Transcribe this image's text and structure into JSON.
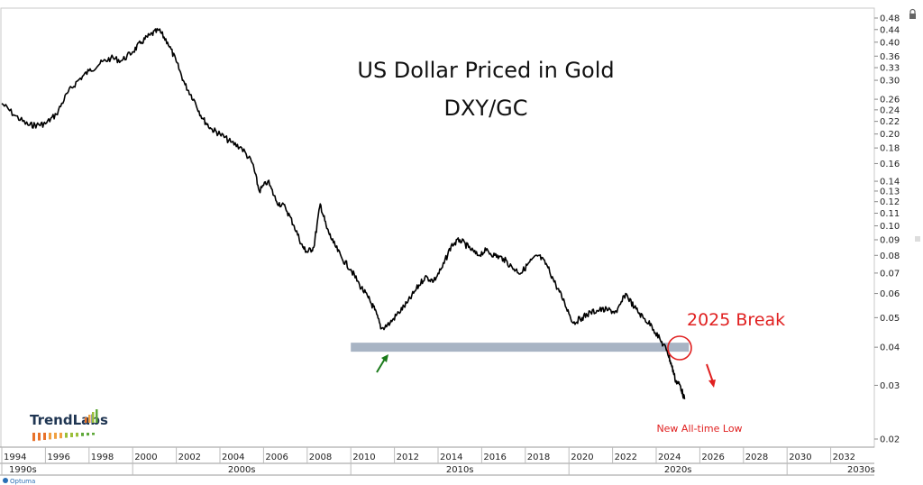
{
  "chart_data": {
    "type": "line",
    "title_line1": "US Dollar Priced in Gold",
    "title_line2": "DXY/GC",
    "y_scale": "log",
    "ylim": [
      0.02,
      0.5
    ],
    "xlim": [
      1994,
      2034
    ],
    "y_ticks": [
      {
        "v": 0.48,
        "label": "0.48"
      },
      {
        "v": 0.44,
        "label": "0.44"
      },
      {
        "v": 0.4,
        "label": "0.40"
      },
      {
        "v": 0.36,
        "label": "0.36"
      },
      {
        "v": 0.33,
        "label": "0.33"
      },
      {
        "v": 0.3,
        "label": "0.30"
      },
      {
        "v": 0.26,
        "label": "0.26"
      },
      {
        "v": 0.24,
        "label": "0.24"
      },
      {
        "v": 0.22,
        "label": "0.22"
      },
      {
        "v": 0.2,
        "label": "0.20"
      },
      {
        "v": 0.18,
        "label": "0.18"
      },
      {
        "v": 0.16,
        "label": "0.16"
      },
      {
        "v": 0.14,
        "label": "0.14"
      },
      {
        "v": 0.13,
        "label": "0.13"
      },
      {
        "v": 0.12,
        "label": "0.12"
      },
      {
        "v": 0.11,
        "label": "0.11"
      },
      {
        "v": 0.1,
        "label": "0.10"
      },
      {
        "v": 0.09,
        "label": "0.09"
      },
      {
        "v": 0.08,
        "label": "0.08"
      },
      {
        "v": 0.07,
        "label": "0.07"
      },
      {
        "v": 0.06,
        "label": "0.06"
      },
      {
        "v": 0.05,
        "label": "0.05"
      },
      {
        "v": 0.04,
        "label": "0.04"
      },
      {
        "v": 0.03,
        "label": "0.03"
      },
      {
        "v": 0.02,
        "label": "0.02"
      }
    ],
    "x_ticks": [
      {
        "v": 1994,
        "label": "1994"
      },
      {
        "v": 1996,
        "label": "1996"
      },
      {
        "v": 1998,
        "label": "1998"
      },
      {
        "v": 2000,
        "label": "2000"
      },
      {
        "v": 2002,
        "label": "2002"
      },
      {
        "v": 2004,
        "label": "2004"
      },
      {
        "v": 2006,
        "label": "2006"
      },
      {
        "v": 2008,
        "label": "2008"
      },
      {
        "v": 2010,
        "label": "2010"
      },
      {
        "v": 2012,
        "label": "2012"
      },
      {
        "v": 2014,
        "label": "2014"
      },
      {
        "v": 2016,
        "label": "2016"
      },
      {
        "v": 2018,
        "label": "2018"
      },
      {
        "v": 2020,
        "label": "2020"
      },
      {
        "v": 2022,
        "label": "2022"
      },
      {
        "v": 2024,
        "label": "2024"
      },
      {
        "v": 2026,
        "label": "2026"
      },
      {
        "v": 2028,
        "label": "2028"
      },
      {
        "v": 2030,
        "label": "2030"
      },
      {
        "v": 2032,
        "label": "2032"
      }
    ],
    "decades": [
      {
        "label": "1990s",
        "start": 1994,
        "end": 2000
      },
      {
        "label": "2000s",
        "start": 2000,
        "end": 2010
      },
      {
        "label": "2010s",
        "start": 2010,
        "end": 2020
      },
      {
        "label": "2020s",
        "start": 2020,
        "end": 2030
      },
      {
        "label": "2030s",
        "start": 2030,
        "end": 2034
      }
    ],
    "series": [
      {
        "color": "#000000",
        "x": [
          1994.0,
          1994.6,
          1995.2,
          1995.6,
          1996.0,
          1996.5,
          1997.0,
          1997.5,
          1998.0,
          1998.5,
          1999.0,
          1999.5,
          2000.0,
          2000.4,
          2000.8,
          2001.2,
          2001.6,
          2002.0,
          2002.4,
          2002.8,
          2003.2,
          2003.6,
          2004.0,
          2004.5,
          2005.0,
          2005.5,
          2005.8,
          2006.2,
          2006.6,
          2007.0,
          2007.4,
          2007.8,
          2008.0,
          2008.3,
          2008.6,
          2008.9,
          2009.2,
          2009.6,
          2010.0,
          2010.4,
          2010.8,
          2011.1,
          2011.4,
          2011.8,
          2012.2,
          2012.6,
          2013.0,
          2013.4,
          2013.8,
          2014.2,
          2014.6,
          2015.0,
          2015.4,
          2015.8,
          2016.2,
          2016.6,
          2017.0,
          2017.4,
          2017.8,
          2018.2,
          2018.6,
          2019.0,
          2019.4,
          2019.8,
          2020.2,
          2020.6,
          2021.0,
          2021.4,
          2021.8,
          2022.2,
          2022.6,
          2023.0,
          2023.4,
          2023.8,
          2024.2,
          2024.5,
          2024.7,
          2024.9,
          2025.1,
          2025.3
        ],
        "y": [
          0.252,
          0.23,
          0.214,
          0.214,
          0.216,
          0.232,
          0.272,
          0.3,
          0.322,
          0.34,
          0.355,
          0.348,
          0.372,
          0.4,
          0.422,
          0.438,
          0.4,
          0.345,
          0.29,
          0.26,
          0.225,
          0.208,
          0.2,
          0.188,
          0.18,
          0.16,
          0.13,
          0.14,
          0.12,
          0.115,
          0.1,
          0.085,
          0.082,
          0.085,
          0.118,
          0.098,
          0.088,
          0.078,
          0.072,
          0.064,
          0.058,
          0.053,
          0.046,
          0.048,
          0.052,
          0.056,
          0.062,
          0.068,
          0.066,
          0.073,
          0.086,
          0.09,
          0.085,
          0.08,
          0.083,
          0.08,
          0.078,
          0.073,
          0.07,
          0.076,
          0.08,
          0.074,
          0.064,
          0.056,
          0.048,
          0.05,
          0.052,
          0.053,
          0.053,
          0.052,
          0.06,
          0.054,
          0.05,
          0.047,
          0.042,
          0.039,
          0.035,
          0.031,
          0.03,
          0.027
        ]
      }
    ],
    "support_band": {
      "value": 0.04,
      "x_start": 2010.0,
      "x_end": 2025.5,
      "color": "#a8b4c4"
    },
    "annotations": {
      "break_text": "2025 Break",
      "low_text": "New All-time Low",
      "break_color": "#e02020",
      "up_arrow_color": "#1a7a1a"
    },
    "logo": {
      "text": "TrendLabs",
      "bars_colors": [
        "#e8722a",
        "#f0a040",
        "#9bbf3a",
        "#5fa83a"
      ]
    },
    "footer_brand": "Optuma"
  }
}
